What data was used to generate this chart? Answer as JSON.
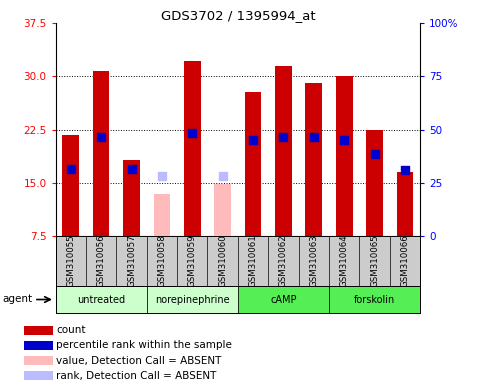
{
  "title": "GDS3702 / 1395994_at",
  "samples": [
    "GSM310055",
    "GSM310056",
    "GSM310057",
    "GSM310058",
    "GSM310059",
    "GSM310060",
    "GSM310061",
    "GSM310062",
    "GSM310063",
    "GSM310064",
    "GSM310065",
    "GSM310066"
  ],
  "count_values": [
    21.8,
    30.7,
    18.2,
    null,
    32.2,
    null,
    27.8,
    31.5,
    29.0,
    30.0,
    22.5,
    16.5
  ],
  "count_absent": [
    null,
    null,
    null,
    13.5,
    null,
    14.8,
    null,
    null,
    null,
    null,
    null,
    null
  ],
  "rank_values": [
    17.0,
    21.5,
    17.0,
    null,
    22.0,
    null,
    21.0,
    21.5,
    21.5,
    21.0,
    19.0,
    16.8
  ],
  "rank_absent": [
    null,
    null,
    null,
    16.0,
    null,
    16.0,
    null,
    null,
    null,
    null,
    null,
    null
  ],
  "agents": [
    {
      "label": "untreated",
      "start": 0,
      "end": 3
    },
    {
      "label": "norepinephrine",
      "start": 3,
      "end": 6
    },
    {
      "label": "cAMP",
      "start": 6,
      "end": 9
    },
    {
      "label": "forskolin",
      "start": 9,
      "end": 12
    }
  ],
  "agent_colors": [
    "#ccffcc",
    "#ccffcc",
    "#55ee55",
    "#55ee55"
  ],
  "ylim_left": [
    7.5,
    37.5
  ],
  "ylim_right": [
    0,
    100
  ],
  "yticks_left": [
    7.5,
    15.0,
    22.5,
    30.0,
    37.5
  ],
  "yticks_right": [
    0,
    25,
    50,
    75,
    100
  ],
  "count_color": "#cc0000",
  "rank_color": "#0000cc",
  "count_absent_color": "#ffbbbb",
  "rank_absent_color": "#bbbbff",
  "bar_width": 0.55,
  "rank_marker_size": 40
}
